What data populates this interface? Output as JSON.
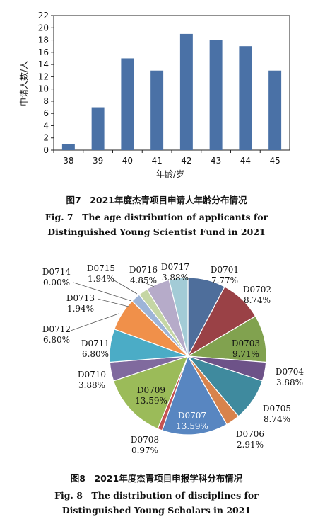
{
  "chart_data": [
    {
      "type": "bar",
      "categories": [
        "38",
        "39",
        "40",
        "41",
        "42",
        "43",
        "44",
        "45"
      ],
      "values": [
        1,
        7,
        15,
        13,
        19,
        18,
        17,
        13
      ],
      "xlabel": "年龄/岁",
      "ylabel": "申请人数/人",
      "ylim": [
        0,
        22
      ],
      "yticks": [
        "0",
        "2",
        "4",
        "6",
        "8",
        "10",
        "12",
        "14",
        "16",
        "18",
        "20",
        "22"
      ],
      "grid": false,
      "color": "#4a71a6"
    },
    {
      "type": "pie",
      "slices": [
        {
          "label": "D0701",
          "pct": "7.77%",
          "value": 7.77,
          "color": "#4e6e9b"
        },
        {
          "label": "D0702",
          "pct": "8.74%",
          "value": 8.74,
          "color": "#9a4146"
        },
        {
          "label": "D0703",
          "pct": "9.71%",
          "value": 9.71,
          "color": "#81a24f"
        },
        {
          "label": "D0704",
          "pct": "3.88%",
          "value": 3.88,
          "color": "#6d5288"
        },
        {
          "label": "D0705",
          "pct": "8.74%",
          "value": 8.74,
          "color": "#3f8a9e"
        },
        {
          "label": "D0706",
          "pct": "2.91%",
          "value": 2.91,
          "color": "#d8834c"
        },
        {
          "label": "D0707",
          "pct": "13.59%",
          "value": 13.59,
          "color": "#5886c1"
        },
        {
          "label": "D0708",
          "pct": "0.97%",
          "value": 0.97,
          "color": "#c55252"
        },
        {
          "label": "D0709",
          "pct": "13.59%",
          "value": 13.59,
          "color": "#9bbb59"
        },
        {
          "label": "D0710",
          "pct": "3.88%",
          "value": 3.88,
          "color": "#806a9e"
        },
        {
          "label": "D0711",
          "pct": "6.80%",
          "value": 6.8,
          "color": "#4bacc6"
        },
        {
          "label": "D0712",
          "pct": "6.80%",
          "value": 6.8,
          "color": "#f0904a"
        },
        {
          "label": "D0713",
          "pct": "1.94%",
          "value": 1.94,
          "color": "#9db4d8"
        },
        {
          "label": "D0714",
          "pct": "0.00%",
          "value": 0,
          "color": "#d7a2a2"
        },
        {
          "label": "D0715",
          "pct": "1.94%",
          "value": 1.94,
          "color": "#c5d6a4"
        },
        {
          "label": "D0716",
          "pct": "4.85%",
          "value": 4.85,
          "color": "#b6abc9"
        },
        {
          "label": "D0717",
          "pct": "3.88%",
          "value": 3.88,
          "color": "#a3cbd6"
        }
      ]
    }
  ],
  "captions": {
    "fig7_cn": "图7　2021年度杰青项目申请人年龄分布情况",
    "fig7_en1": "Fig. 7　The age distribution of applicants for",
    "fig7_en2": "Distinguished Young Scientist Fund in 2021",
    "fig8_cn": "图8　2021年度杰青项目申报学科分布情况",
    "fig8_en1": "Fig. 8　The distribution of disciplines for",
    "fig8_en2": "Distinguished Young Scholars in 2021"
  }
}
